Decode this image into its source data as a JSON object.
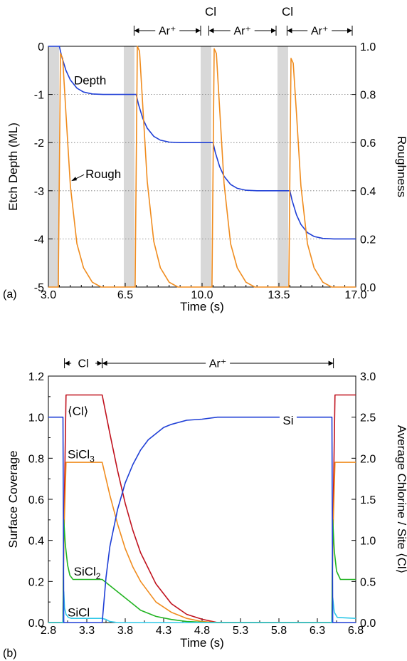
{
  "chart_data": [
    {
      "type": "line",
      "panel_label": "(a)",
      "xlabel": "Time (s)",
      "ylabel": "Etch Depth (ML)",
      "y2label": "Roughness",
      "xlim": [
        3.0,
        17.0
      ],
      "ylim": [
        -5,
        0
      ],
      "y2lim": [
        0.0,
        1.0
      ],
      "xticks": [
        "3.0",
        "6.5",
        "10.0",
        "13.5",
        "17.0"
      ],
      "yticks": [
        "0",
        "-1",
        "-2",
        "-3",
        "-4",
        "-5"
      ],
      "y2ticks": [
        "1.0",
        "0.8",
        "0.6",
        "0.4",
        "0.2",
        "0.0"
      ],
      "grid": "horizontal dotted",
      "shaded_intervals": [
        [
          3.0,
          3.5
        ],
        [
          6.5,
          7.0
        ],
        [
          10.0,
          10.5
        ],
        [
          13.5,
          14.0
        ]
      ],
      "phase_labels": [
        {
          "text": "Ar⁺",
          "from": 7.0,
          "to": 10.0
        },
        {
          "text": "Cl",
          "at": 10.25
        },
        {
          "text": "Ar⁺",
          "from": 10.5,
          "to": 13.5
        },
        {
          "text": "Cl",
          "at": 13.75
        },
        {
          "text": "Ar⁺",
          "from": 14.0,
          "to": 17.0
        }
      ],
      "annotations": [
        {
          "text": "Depth",
          "x": 4.9,
          "y": -0.72
        },
        {
          "text": "Rough",
          "x": 4.3,
          "y": -2.65
        }
      ],
      "colors": {
        "depth": "#1f3fd6",
        "rough": "#f08c1e",
        "shade": "#d8d8d8"
      },
      "series": [
        {
          "name": "Depth",
          "axis": "left",
          "x": [
            3.0,
            3.5,
            3.6,
            3.8,
            4.0,
            4.3,
            4.6,
            5.0,
            5.5,
            6.0,
            6.5,
            7.0,
            7.1,
            7.3,
            7.5,
            7.8,
            8.1,
            8.5,
            9.0,
            9.5,
            10.0,
            10.5,
            10.6,
            10.8,
            11.0,
            11.3,
            11.6,
            12.0,
            12.5,
            13.0,
            13.5,
            14.0,
            14.1,
            14.3,
            14.5,
            14.8,
            15.1,
            15.5,
            16.0,
            16.5,
            17.0
          ],
          "values": [
            0,
            0,
            -0.2,
            -0.5,
            -0.7,
            -0.87,
            -0.95,
            -0.99,
            -1.0,
            -1.0,
            -1.0,
            -1.0,
            -1.2,
            -1.5,
            -1.7,
            -1.87,
            -1.95,
            -1.99,
            -2.0,
            -2.0,
            -2.0,
            -2.0,
            -2.2,
            -2.5,
            -2.7,
            -2.87,
            -2.95,
            -2.99,
            -3.0,
            -3.0,
            -3.0,
            -3.0,
            -3.2,
            -3.5,
            -3.7,
            -3.87,
            -3.95,
            -3.99,
            -4.0,
            -4.0,
            -4.0
          ]
        },
        {
          "name": "Rough",
          "axis": "right",
          "x": [
            3.0,
            3.3,
            3.45,
            3.55,
            3.65,
            3.8,
            4.0,
            4.3,
            4.6,
            5.0,
            5.4,
            6.5,
            6.8,
            6.95,
            7.05,
            7.15,
            7.3,
            7.5,
            7.8,
            8.1,
            8.5,
            8.9,
            10.0,
            10.3,
            10.45,
            10.55,
            10.65,
            10.8,
            11.0,
            11.3,
            11.6,
            12.0,
            12.4,
            13.5,
            13.8,
            13.95,
            14.05,
            14.15,
            14.3,
            14.5,
            14.8,
            15.1,
            15.5,
            15.9,
            17.0
          ],
          "values": [
            0.0,
            0.0,
            0.0,
            0.97,
            0.95,
            0.72,
            0.42,
            0.18,
            0.08,
            0.02,
            0.0,
            0.0,
            0.0,
            0.0,
            1.0,
            0.98,
            0.75,
            0.44,
            0.19,
            0.08,
            0.02,
            0.0,
            0.0,
            0.0,
            0.0,
            0.99,
            0.97,
            0.74,
            0.43,
            0.18,
            0.08,
            0.02,
            0.0,
            0.0,
            0.0,
            0.0,
            0.95,
            0.93,
            0.72,
            0.42,
            0.18,
            0.08,
            0.02,
            0.0,
            0.0
          ]
        }
      ]
    },
    {
      "type": "line",
      "panel_label": "(b)",
      "xlabel": "Time (s)",
      "ylabel": "Surface Coverage",
      "y2label": "Average Chlorine / Site ⟨Cl⟩",
      "xlim": [
        2.8,
        6.8
      ],
      "ylim": [
        0.0,
        1.2
      ],
      "y2lim": [
        0.0,
        3.0
      ],
      "xticks": [
        "2.8",
        "3.3",
        "3.8",
        "4.3",
        "4.8",
        "5.3",
        "5.8",
        "6.3",
        "6.8"
      ],
      "yticks": [
        "0.0",
        "0.2",
        "0.4",
        "0.6",
        "0.8",
        "1.0",
        "1.2"
      ],
      "y2ticks": [
        "0.0",
        "0.5",
        "1.0",
        "1.5",
        "2.0",
        "2.5",
        "3.0"
      ],
      "grid": "none",
      "phase_labels": [
        {
          "text": "Cl",
          "from": 3.0,
          "to": 3.5
        },
        {
          "text": "Ar⁺",
          "from": 3.5,
          "to": 6.5
        }
      ],
      "colors": {
        "cl_avg": "#c0121e",
        "sicl3": "#f08c1e",
        "sicl2": "#22b422",
        "sicl": "#2ec8e8",
        "si": "#1f3fd6"
      },
      "series": [
        {
          "name": "⟨Cl⟩",
          "label_html": "⟨Cl⟩",
          "axis": "right",
          "color": "#c0121e",
          "x": [
            2.8,
            2.99,
            3.0,
            3.03,
            3.5,
            3.6,
            3.7,
            3.8,
            3.9,
            4.0,
            4.2,
            4.4,
            4.6,
            4.8,
            5.0,
            6.49,
            6.5,
            6.53,
            6.8
          ],
          "values": [
            0.0,
            0.0,
            1.0,
            2.77,
            2.77,
            2.3,
            1.85,
            1.45,
            1.12,
            0.85,
            0.47,
            0.23,
            0.1,
            0.04,
            0.0,
            0.0,
            1.0,
            2.77,
            2.77
          ]
        },
        {
          "name": "SiCl3",
          "label_base": "SiCl",
          "label_sub": "3",
          "axis": "left",
          "color": "#f08c1e",
          "x": [
            2.8,
            2.99,
            3.0,
            3.03,
            3.5,
            3.6,
            3.7,
            3.8,
            3.9,
            4.0,
            4.2,
            4.4,
            4.6,
            4.8,
            5.0,
            6.49,
            6.5,
            6.53,
            6.8
          ],
          "values": [
            0.0,
            0.0,
            0.4,
            0.78,
            0.78,
            0.62,
            0.48,
            0.36,
            0.27,
            0.2,
            0.1,
            0.05,
            0.02,
            0.005,
            0.0,
            0.0,
            0.4,
            0.78,
            0.78
          ]
        },
        {
          "name": "SiCl2",
          "label_base": "SiCl",
          "label_sub": "2",
          "axis": "left",
          "color": "#22b422",
          "x": [
            2.8,
            2.99,
            3.0,
            3.02,
            3.05,
            3.08,
            3.12,
            3.2,
            3.5,
            3.6,
            3.7,
            3.8,
            3.9,
            4.0,
            4.2,
            4.4,
            4.6,
            4.9,
            6.49,
            6.5,
            6.52,
            6.55,
            6.6,
            6.8
          ],
          "values": [
            0.0,
            0.0,
            0.5,
            0.38,
            0.28,
            0.23,
            0.21,
            0.21,
            0.21,
            0.18,
            0.15,
            0.12,
            0.09,
            0.06,
            0.03,
            0.015,
            0.005,
            0.0,
            0.0,
            0.5,
            0.35,
            0.25,
            0.21,
            0.21
          ]
        },
        {
          "name": "SiCl",
          "axis": "left",
          "color": "#2ec8e8",
          "x": [
            2.8,
            2.99,
            3.0,
            3.01,
            3.03,
            3.06,
            3.1,
            3.5,
            3.55,
            3.6,
            3.7,
            6.49,
            6.5,
            6.52,
            6.56,
            6.8
          ],
          "values": [
            0.0,
            0.0,
            0.15,
            0.07,
            0.04,
            0.025,
            0.02,
            0.02,
            0.015,
            0.005,
            0.0,
            0.0,
            0.12,
            0.05,
            0.025,
            0.02
          ]
        },
        {
          "name": "Si",
          "axis": "left",
          "color": "#1f3fd6",
          "x": [
            2.8,
            2.99,
            3.0,
            3.5,
            3.55,
            3.6,
            3.7,
            3.8,
            3.9,
            4.0,
            4.1,
            4.2,
            4.3,
            4.4,
            4.5,
            4.6,
            4.8,
            5.0,
            5.3,
            6.49,
            6.5,
            6.8
          ],
          "values": [
            1.0,
            1.0,
            0.0,
            0.0,
            0.22,
            0.37,
            0.55,
            0.68,
            0.77,
            0.84,
            0.89,
            0.92,
            0.95,
            0.965,
            0.975,
            0.985,
            0.99,
            1.0,
            1.0,
            1.0,
            0.0,
            0.0
          ]
        }
      ],
      "series_labels": [
        {
          "series": "⟨Cl⟩",
          "x": 3.05,
          "y": 1.03
        },
        {
          "series": "SiCl3",
          "x": 3.05,
          "y": 0.82
        },
        {
          "series": "SiCl2",
          "x": 3.13,
          "y": 0.25
        },
        {
          "series": "SiCl",
          "x": 3.05,
          "y": 0.05
        },
        {
          "series": "Si",
          "x": 5.92,
          "y": 0.985
        }
      ]
    }
  ]
}
